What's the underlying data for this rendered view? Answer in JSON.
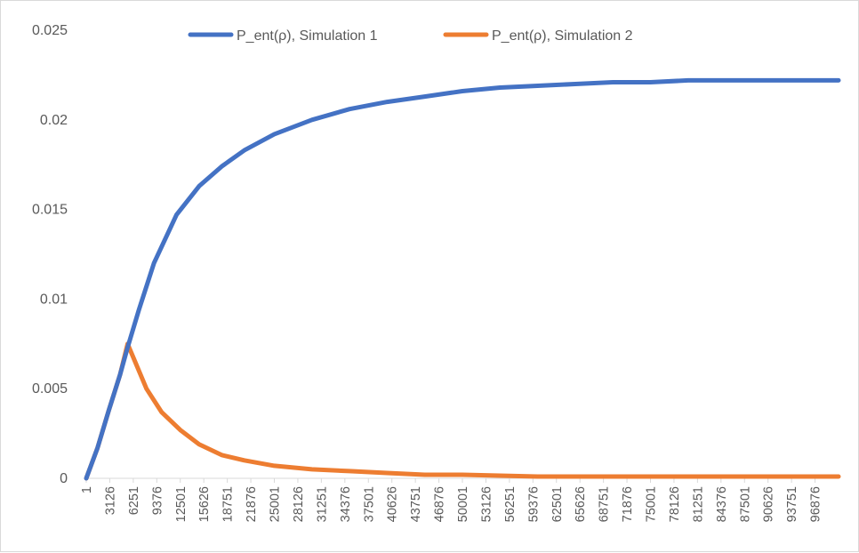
{
  "chart_data": {
    "type": "line",
    "title": "",
    "xlabel": "",
    "ylabel": "",
    "ylim": [
      0,
      0.025
    ],
    "xlim": [
      1,
      100000
    ],
    "yticks": [
      "0",
      "0.005",
      "0.01",
      "0.015",
      "0.02",
      "0.025"
    ],
    "xticks": [
      "1",
      "3126",
      "6251",
      "9376",
      "12501",
      "15626",
      "18751",
      "21876",
      "25001",
      "28126",
      "31251",
      "34376",
      "37501",
      "40626",
      "43751",
      "46876",
      "50001",
      "53126",
      "56251",
      "59376",
      "62501",
      "65626",
      "68751",
      "71876",
      "75001",
      "78126",
      "81251",
      "84376",
      "87501",
      "90626",
      "93751",
      "96876"
    ],
    "grid": false,
    "legend": "top",
    "series": [
      {
        "name": "P_ent(ρ), Simulation 1",
        "color": "#4472c4",
        "points": [
          [
            1,
            0
          ],
          [
            1500,
            0.0017
          ],
          [
            3000,
            0.0038
          ],
          [
            4500,
            0.0058
          ],
          [
            5500,
            0.0073
          ],
          [
            7000,
            0.0094
          ],
          [
            9000,
            0.012
          ],
          [
            12000,
            0.0147
          ],
          [
            15000,
            0.0163
          ],
          [
            18000,
            0.0174
          ],
          [
            21000,
            0.0183
          ],
          [
            25000,
            0.0192
          ],
          [
            30000,
            0.02
          ],
          [
            35000,
            0.0206
          ],
          [
            40000,
            0.021
          ],
          [
            45000,
            0.0213
          ],
          [
            50000,
            0.0216
          ],
          [
            55000,
            0.0218
          ],
          [
            60000,
            0.0219
          ],
          [
            65000,
            0.022
          ],
          [
            70000,
            0.0221
          ],
          [
            75000,
            0.0221
          ],
          [
            80000,
            0.0222
          ],
          [
            85000,
            0.0222
          ],
          [
            90000,
            0.0222
          ],
          [
            95000,
            0.0222
          ],
          [
            100000,
            0.0222
          ]
        ]
      },
      {
        "name": "P_ent(ρ), Simulation 2",
        "color": "#ed7d31",
        "points": [
          [
            1,
            0
          ],
          [
            1500,
            0.0017
          ],
          [
            3000,
            0.0038
          ],
          [
            4500,
            0.0058
          ],
          [
            5500,
            0.0075
          ],
          [
            6500,
            0.0065
          ],
          [
            8000,
            0.005
          ],
          [
            10000,
            0.0037
          ],
          [
            12500,
            0.0027
          ],
          [
            15000,
            0.0019
          ],
          [
            18000,
            0.0013
          ],
          [
            21000,
            0.001
          ],
          [
            25000,
            0.0007
          ],
          [
            30000,
            0.0005
          ],
          [
            35000,
            0.0004
          ],
          [
            40000,
            0.0003
          ],
          [
            45000,
            0.0002
          ],
          [
            50000,
            0.0002
          ],
          [
            60000,
            0.0001
          ],
          [
            70000,
            0.0001
          ],
          [
            80000,
            0.0001
          ],
          [
            90000,
            0.0001
          ],
          [
            100000,
            0.0001
          ]
        ]
      }
    ]
  }
}
